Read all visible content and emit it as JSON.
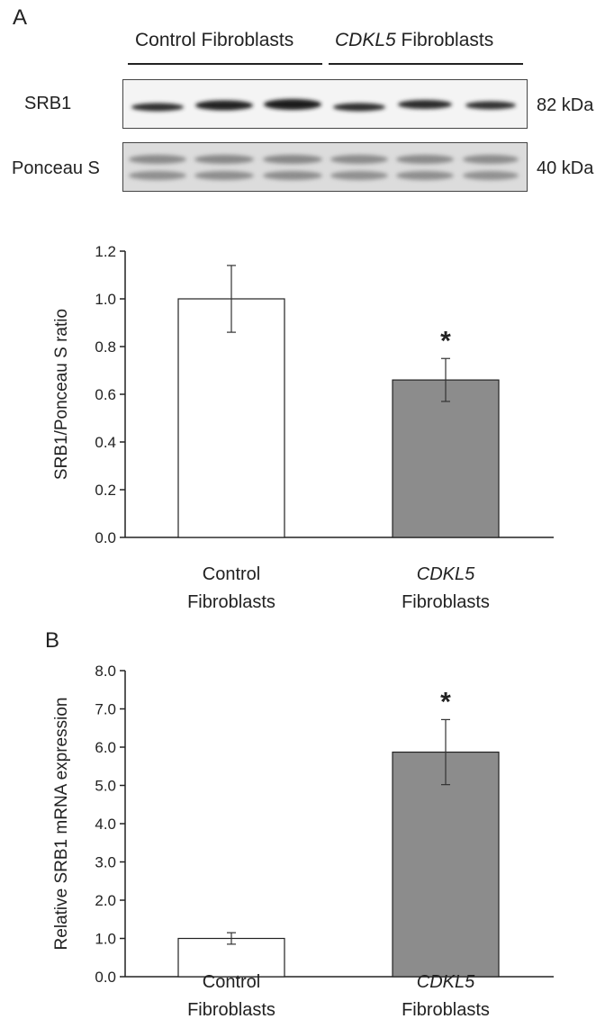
{
  "panel_a_letter": "A",
  "panel_b_letter": "B",
  "blot": {
    "group_labels": {
      "control": "Control Fibroblasts",
      "cdkl5_italic": "CDKL5",
      "cdkl5_rest": " Fibroblasts"
    },
    "rows": [
      {
        "label": "SRB1",
        "marker": "82 kDa"
      },
      {
        "label": "Ponceau S",
        "marker": "40 kDa"
      }
    ]
  },
  "chart_data": [
    {
      "type": "bar",
      "panel": "A",
      "categories": [
        {
          "line1": "Control",
          "line2": "Fibroblasts",
          "italic_line1": false
        },
        {
          "line1": "CDKL5",
          "line2": "Fibroblasts",
          "italic_line1": true
        }
      ],
      "values": [
        1.0,
        0.66
      ],
      "errors": [
        0.14,
        0.09
      ],
      "significance": [
        "",
        "*"
      ],
      "bar_colors": [
        "#ffffff",
        "#8c8c8c"
      ],
      "ylabel": "SRB1/Ponceau S ratio",
      "ylim": [
        0,
        1.2
      ],
      "yticks": [
        "0.0",
        "0.2",
        "0.4",
        "0.6",
        "0.8",
        "1.0",
        "1.2"
      ],
      "grid": false
    },
    {
      "type": "bar",
      "panel": "B",
      "categories": [
        {
          "line1": "Control",
          "line2": "Fibroblasts",
          "italic_line1": false
        },
        {
          "line1": "CDKL5",
          "line2": "Fibroblasts",
          "italic_line1": true
        }
      ],
      "values": [
        1.0,
        5.87
      ],
      "errors": [
        0.15,
        0.85
      ],
      "significance": [
        "",
        "*"
      ],
      "bar_colors": [
        "#ffffff",
        "#8c8c8c"
      ],
      "ylabel": "Relative SRB1 mRNA expression",
      "ylim": [
        0,
        8
      ],
      "yticks": [
        "0.0",
        "1.0",
        "2.0",
        "3.0",
        "4.0",
        "5.0",
        "6.0",
        "7.0",
        "8.0"
      ],
      "grid": false
    }
  ]
}
